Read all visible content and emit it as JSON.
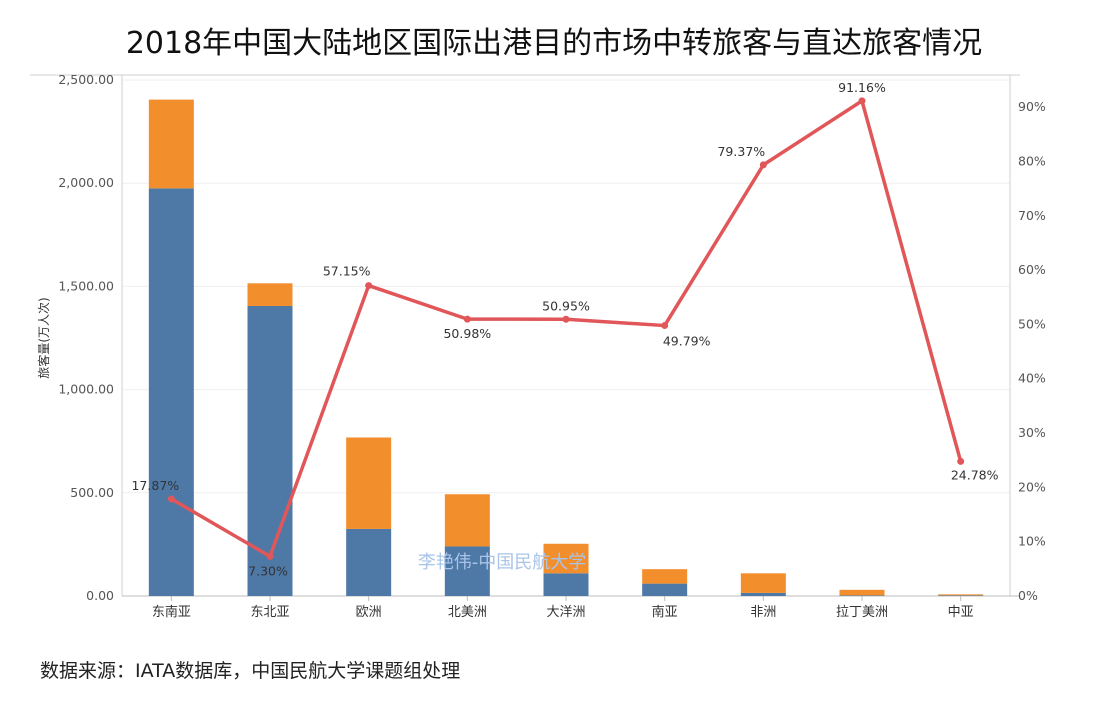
{
  "title": "2018年中国大陆地区国际出港目的市场中转旅客与直达旅客情况",
  "source": "数据来源：IATA数据库，中国民航大学课题组处理",
  "watermark": "李艳伟-中国民航大学",
  "colors": {
    "series_blue": "#4e79a7",
    "series_orange": "#f28e2b",
    "line_red": "#e15759"
  },
  "chart_data": {
    "type": "bar",
    "stacked": true,
    "categories": [
      "东南亚",
      "东北亚",
      "欧洲",
      "北美洲",
      "大洋洲",
      "南亚",
      "非洲",
      "拉丁美洲",
      "中亚"
    ],
    "series": [
      {
        "values": [
          1975,
          1405,
          325,
          240,
          110,
          60,
          15,
          3,
          3
        ]
      },
      {
        "values": [
          430,
          110,
          443,
          253,
          143,
          70,
          95,
          27,
          5
        ]
      },
      {
        "type": "line",
        "axis": "right",
        "values": [
          17.87,
          7.3,
          57.15,
          50.98,
          50.95,
          49.79,
          79.37,
          91.16,
          24.78
        ],
        "labels": [
          "17.87%",
          "7.30%",
          "57.15%",
          "50.98%",
          "50.95%",
          "49.79%",
          "79.37%",
          "91.16%",
          "24.78%"
        ]
      }
    ],
    "ylabel": "旅客量(万人次)",
    "ylim": [
      0,
      2500
    ],
    "y_ticks": [
      "0.00",
      "500.00",
      "1,000.00",
      "1,500.00",
      "2,000.00",
      "2,500.00"
    ],
    "y2lim": [
      0,
      95
    ],
    "y2_ticks": [
      "0%",
      "10%",
      "20%",
      "30%",
      "40%",
      "50%",
      "60%",
      "70%",
      "80%",
      "90%"
    ],
    "grid": true
  }
}
